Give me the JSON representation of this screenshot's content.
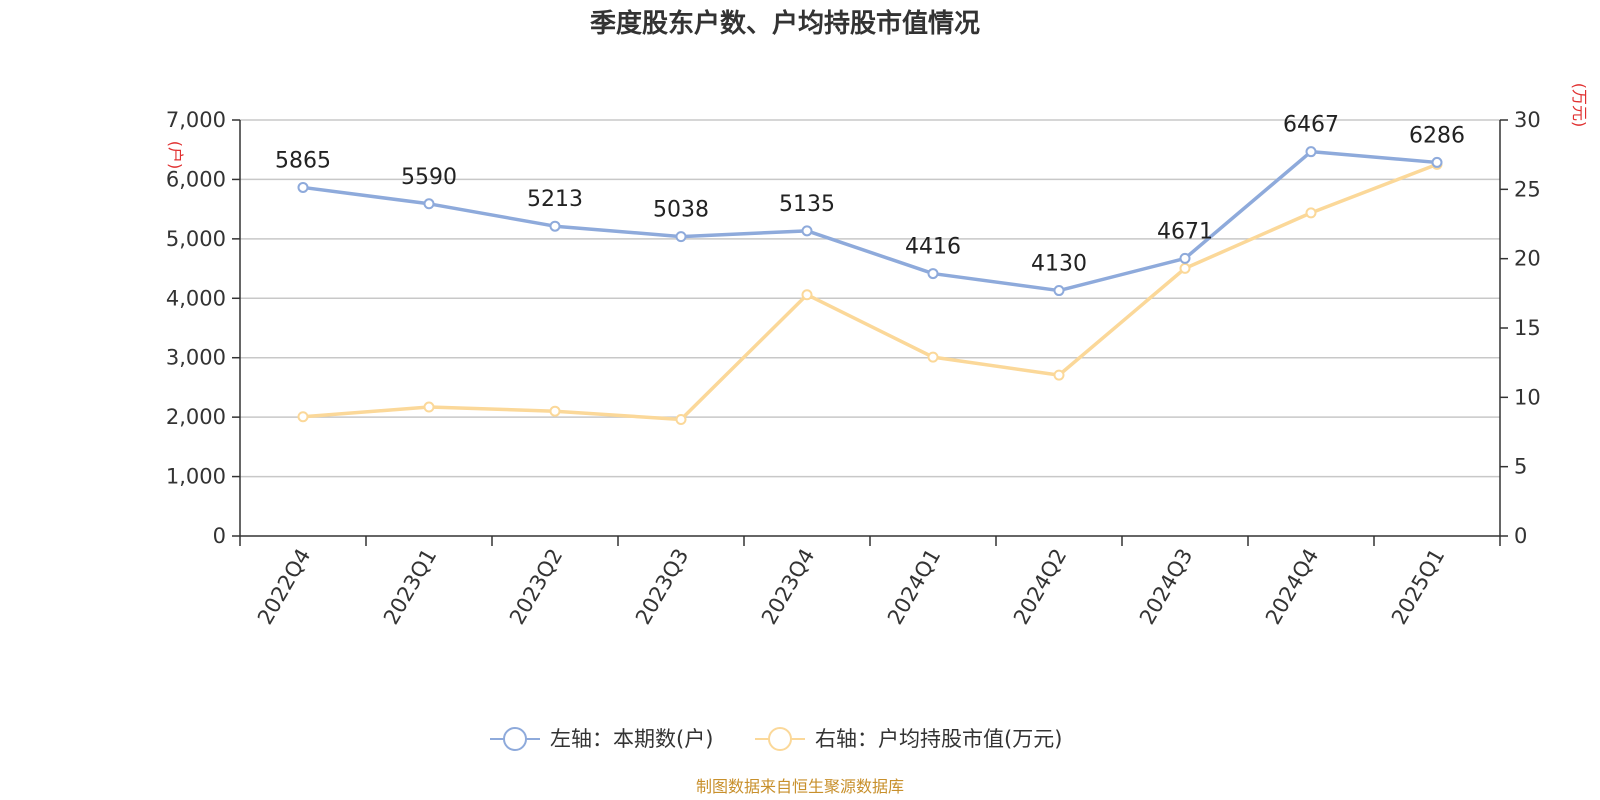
{
  "chart_data": {
    "type": "line",
    "title": "季度股东户数、户均持股市值情况",
    "categories": [
      "2022Q4",
      "2023Q1",
      "2023Q2",
      "2023Q3",
      "2023Q4",
      "2024Q1",
      "2024Q2",
      "2024Q3",
      "2024Q4",
      "2025Q1"
    ],
    "left_axis": {
      "unit": "(户)",
      "ylim": [
        0,
        7000
      ],
      "ticks": [
        "0",
        "1,000",
        "2,000",
        "3,000",
        "4,000",
        "5,000",
        "6,000",
        "7,000"
      ]
    },
    "right_axis": {
      "unit": "(万元)",
      "ylim": [
        0,
        30
      ],
      "ticks": [
        "0",
        "5",
        "10",
        "15",
        "20",
        "25",
        "30"
      ]
    },
    "series": [
      {
        "name": "左轴：本期数(户)",
        "axis": "left",
        "color": "#8eaadb",
        "values": [
          5865,
          5590,
          5213,
          5038,
          5135,
          4416,
          4130,
          4671,
          6467,
          6286
        ],
        "labels": [
          "5865",
          "5590",
          "5213",
          "5038",
          "5135",
          "4416",
          "4130",
          "4671",
          "6467",
          "6286"
        ]
      },
      {
        "name": "右轴：户均持股市值(万元)",
        "axis": "right",
        "color": "#fbd899",
        "values": [
          8.6,
          9.3,
          9.0,
          8.4,
          17.4,
          12.9,
          11.6,
          19.3,
          23.3,
          26.8
        ]
      }
    ],
    "grid": true,
    "legend_position": "bottom"
  },
  "source_text": "制图数据来自恒生聚源数据库"
}
